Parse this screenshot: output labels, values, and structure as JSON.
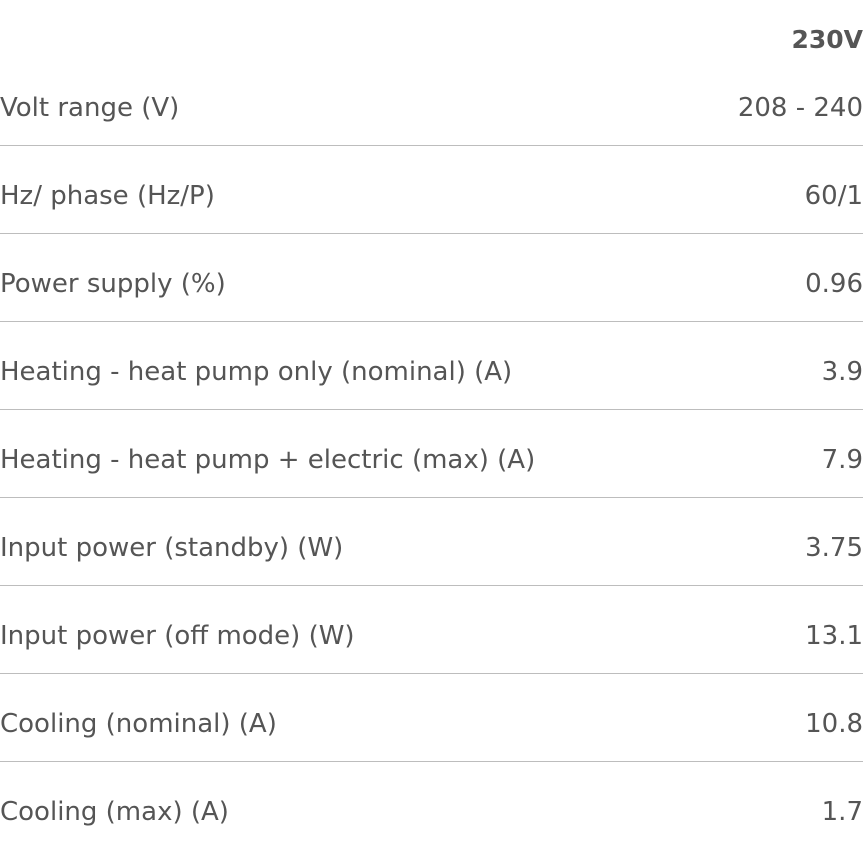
{
  "table": {
    "header": "230V",
    "rows": [
      [
        "Volt range (V)",
        "208 - 240"
      ],
      [
        "Hz/ phase (Hz/P)",
        "60/1"
      ],
      [
        "Power supply (%)",
        "0.96"
      ],
      [
        "Heating - heat pump only (nominal) (A)",
        "3.9"
      ],
      [
        "Heating - heat pump + electric (max) (A)",
        "7.9"
      ],
      [
        "Input power (standby) (W)",
        "3.75"
      ],
      [
        "Input power (off mode) (W)",
        "13.1"
      ],
      [
        "Cooling (nominal) (A)",
        "10.8"
      ],
      [
        "Cooling (max) (A)",
        "1.7"
      ]
    ]
  }
}
